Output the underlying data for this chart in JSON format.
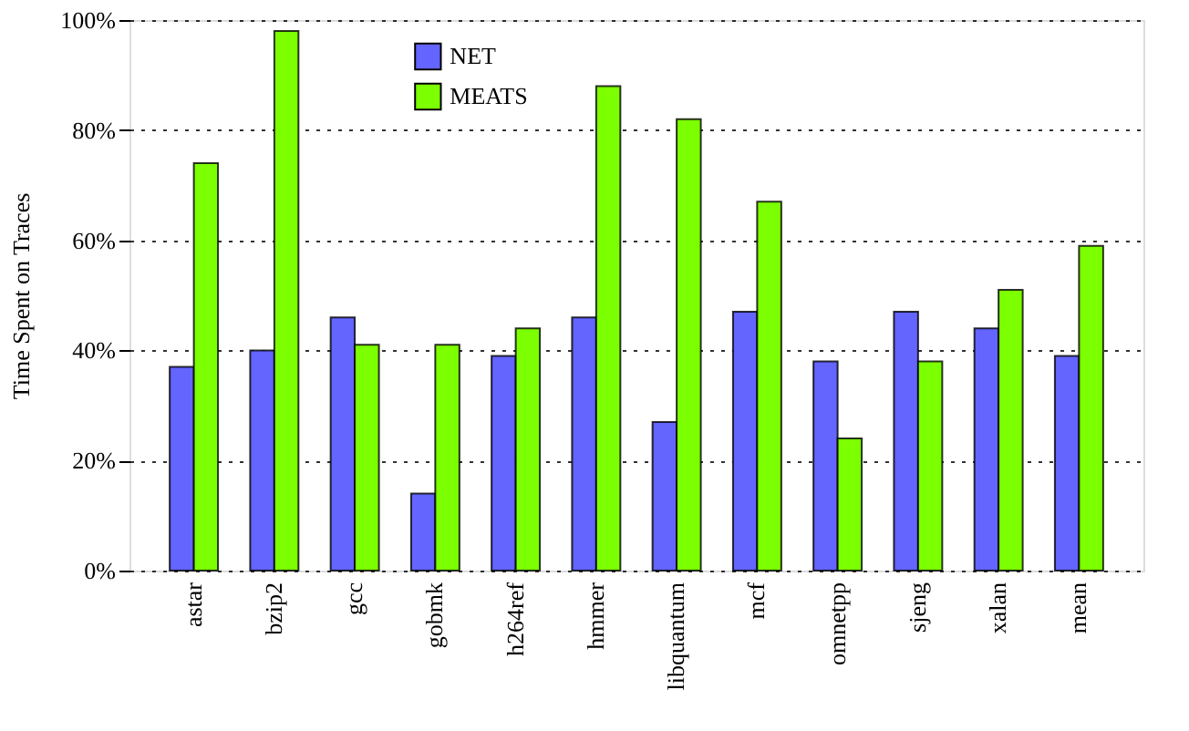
{
  "chart_data": {
    "type": "bar",
    "ylabel": "Time Spent on Traces",
    "categories": [
      "astar",
      "bzip2",
      "gcc",
      "gobmk",
      "h264ref",
      "hmmer",
      "libquantum",
      "mcf",
      "omnetpp",
      "sjeng",
      "xalan",
      "mean"
    ],
    "series": [
      {
        "name": "NET",
        "color": "#6464ff",
        "values": [
          37,
          40,
          46,
          14,
          39,
          46,
          27,
          47,
          38,
          47,
          44,
          39
        ]
      },
      {
        "name": "MEATS",
        "color": "#7cff00",
        "values": [
          74,
          98,
          41,
          41,
          44,
          88,
          82,
          67,
          24,
          38,
          51,
          59
        ]
      }
    ],
    "ylim": [
      0,
      100
    ],
    "yticks": [
      {
        "value": 0,
        "label": "0%"
      },
      {
        "value": 20,
        "label": "20%"
      },
      {
        "value": 40,
        "label": "40%"
      },
      {
        "value": 60,
        "label": "60%"
      },
      {
        "value": 80,
        "label": "80%"
      },
      {
        "value": 100,
        "label": "100%"
      }
    ],
    "grid": "y",
    "legend": "top"
  }
}
